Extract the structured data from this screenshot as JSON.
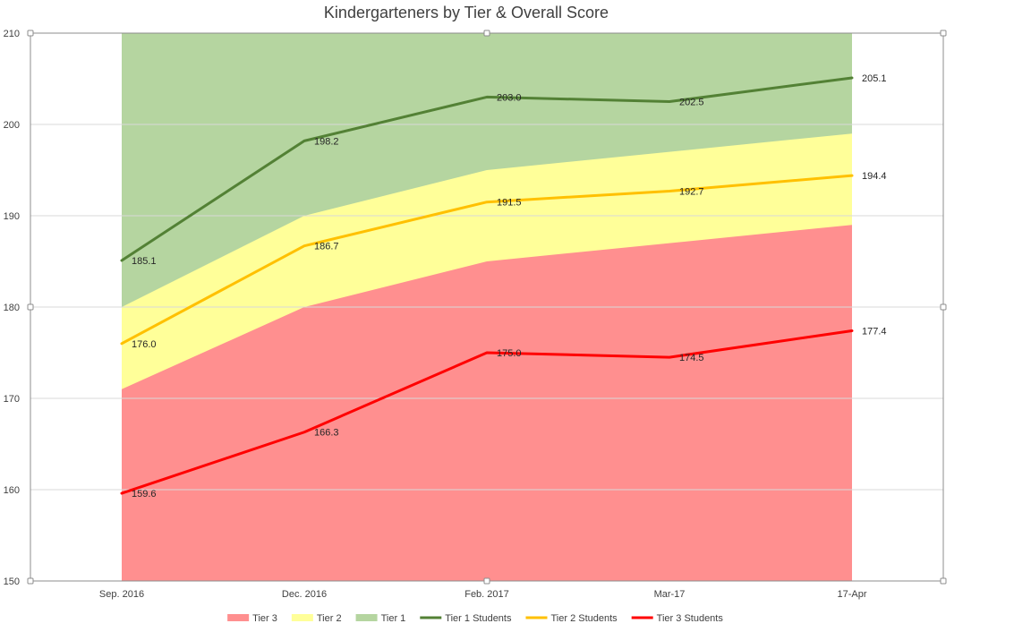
{
  "chart_data": {
    "type": "area",
    "title": "Kindergarteners by Tier & Overall Score",
    "categories": [
      "Sep. 2016",
      "Dec. 2016",
      "Feb. 2017",
      "Mar-17",
      "17-Apr"
    ],
    "ylim": [
      150,
      210
    ],
    "yticks": [
      "150",
      "160",
      "170",
      "180",
      "190",
      "200",
      "210"
    ],
    "grid": true,
    "legend_position": "bottom",
    "area_series": [
      {
        "name": "Tier 3",
        "values": [
          171,
          180,
          185,
          187,
          189
        ],
        "color": "#ff8f8f"
      },
      {
        "name": "Tier 2",
        "values": [
          180,
          190,
          195,
          197,
          199
        ],
        "color": "#ffff99"
      },
      {
        "name": "Tier 1",
        "values": [
          210,
          210,
          210,
          210,
          210
        ],
        "color": "#b5d5a0"
      }
    ],
    "line_series": [
      {
        "name": "Tier 1 Students",
        "values": [
          185.1,
          198.2,
          203.0,
          202.5,
          205.1
        ],
        "labels": [
          "185.1",
          "198.2",
          "203.0",
          "202.5",
          "205.1"
        ],
        "color": "#538135"
      },
      {
        "name": "Tier 2 Students",
        "values": [
          176.0,
          186.7,
          191.5,
          192.7,
          194.4
        ],
        "labels": [
          "176.0",
          "186.7",
          "191.5",
          "192.7",
          "194.4"
        ],
        "color": "#ffc000"
      },
      {
        "name": "Tier 3 Students",
        "values": [
          159.6,
          166.3,
          175.0,
          174.5,
          177.4
        ],
        "labels": [
          "159.6",
          "166.3",
          "175.0",
          "174.5",
          "177.4"
        ],
        "color": "#ff0000"
      }
    ]
  }
}
